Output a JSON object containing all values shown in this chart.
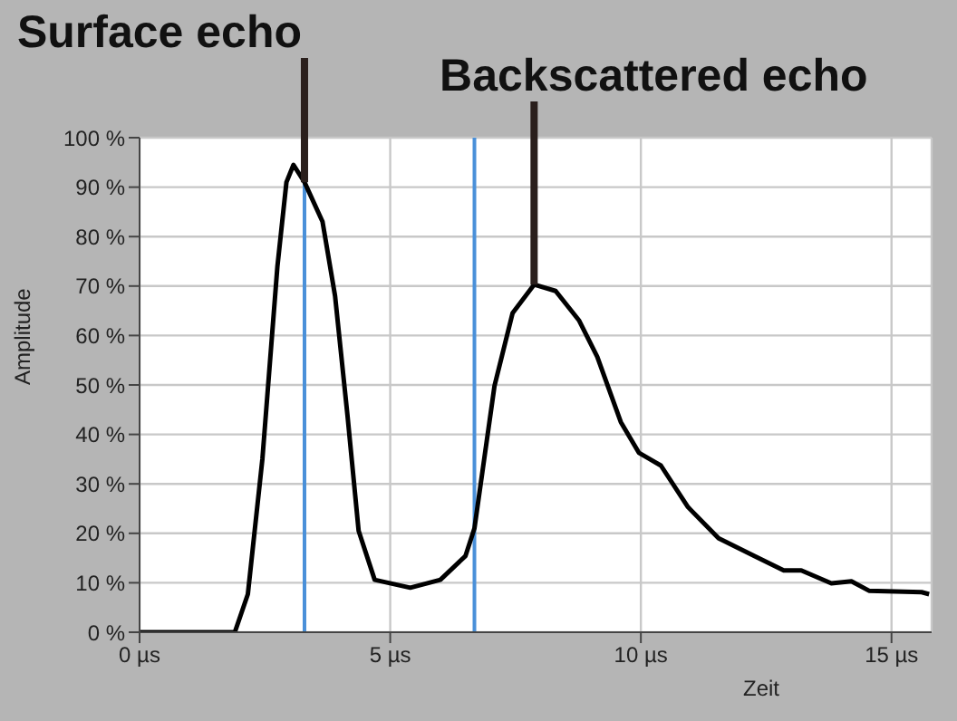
{
  "chart_data": {
    "type": "line",
    "xlabel": "Zeit",
    "ylabel": "Amplitude",
    "x": [
      0,
      1.9,
      2.16,
      2.45,
      2.75,
      2.93,
      3.07,
      3.29,
      3.65,
      3.9,
      4.15,
      4.37,
      4.69,
      5.4,
      6.0,
      6.5,
      6.68,
      7.08,
      7.44,
      7.87,
      8.3,
      8.77,
      9.13,
      9.6,
      9.96,
      10.4,
      10.94,
      11.55,
      12.27,
      12.85,
      13.2,
      13.8,
      14.2,
      14.55,
      15.6,
      15.75
    ],
    "series": [
      {
        "color": "#000000",
        "values": [
          0,
          0,
          7.7,
          35,
          74,
          91,
          94.5,
          91,
          83,
          68,
          43.6,
          20.5,
          10.6,
          9,
          10.6,
          15.4,
          21,
          49.8,
          64.5,
          70.3,
          69,
          63,
          55.7,
          42.5,
          36.3,
          33.7,
          25.3,
          19,
          15.4,
          12.5,
          12.5,
          9.9,
          10.3,
          8.4,
          8.1,
          7.7
        ]
      }
    ],
    "xlim": [
      0,
      15.8
    ],
    "xticks": [
      {
        "value": 0,
        "label": "0 µs"
      },
      {
        "value": 5,
        "label": "5 µs"
      },
      {
        "value": 10,
        "label": "10 µs"
      },
      {
        "value": 15,
        "label": "15 µs"
      }
    ],
    "ylim": [
      0,
      100
    ],
    "yticks": [
      {
        "value": 0,
        "label": "0 %"
      },
      {
        "value": 10,
        "label": "10 %"
      },
      {
        "value": 20,
        "label": "20 %"
      },
      {
        "value": 30,
        "label": "30 %"
      },
      {
        "value": 40,
        "label": "40 %"
      },
      {
        "value": 50,
        "label": "50 %"
      },
      {
        "value": 60,
        "label": "60 %"
      },
      {
        "value": 70,
        "label": "70 %"
      },
      {
        "value": 80,
        "label": "80 %"
      },
      {
        "value": 90,
        "label": "90 %"
      },
      {
        "value": 100,
        "label": "100 %"
      }
    ],
    "grid": true,
    "marker": "none",
    "line_style": "solid",
    "ref_lines": [
      {
        "axis": "x",
        "value": 3.29,
        "color": "#4a90d9"
      },
      {
        "axis": "x",
        "value": 6.68,
        "color": "#4a90d9"
      }
    ],
    "annotations": [
      {
        "text": "Surface echo",
        "x": 3.29,
        "y": 91
      },
      {
        "text": "Backscattered echo",
        "x": 7.87,
        "y": 70.3
      }
    ]
  }
}
